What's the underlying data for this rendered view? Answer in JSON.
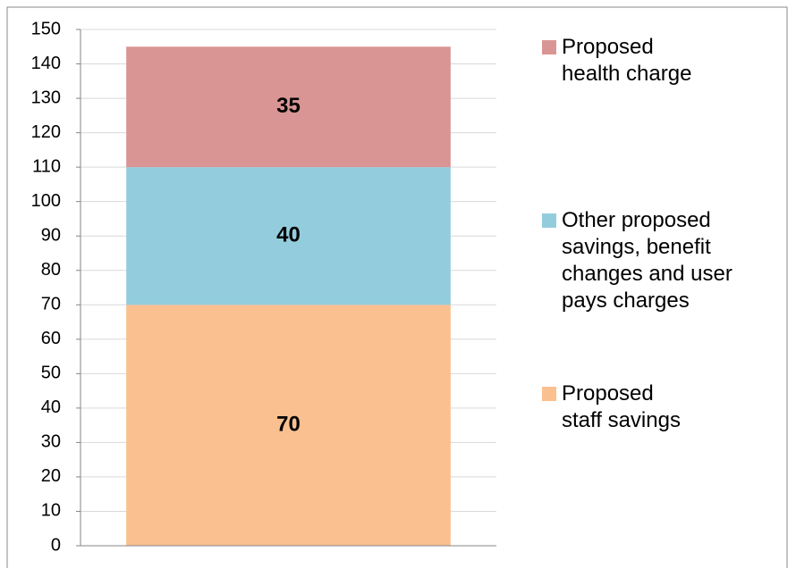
{
  "chart_data": {
    "type": "stacked-bar",
    "categories": [
      null
    ],
    "series": [
      {
        "name": "Proposed staff savings",
        "color": "#fac090",
        "values": [
          70
        ]
      },
      {
        "name": "Other proposed savings, benefit changes and user pays charges",
        "color": "#93cddd",
        "values": [
          40
        ]
      },
      {
        "name": "Proposed health charge",
        "color": "#d99594",
        "values": [
          35
        ]
      }
    ],
    "ylim": [
      0,
      150
    ],
    "yticks": [
      0,
      10,
      20,
      30,
      40,
      50,
      60,
      70,
      80,
      90,
      100,
      110,
      120,
      130,
      140,
      150
    ],
    "grid": true,
    "legend": "right"
  }
}
